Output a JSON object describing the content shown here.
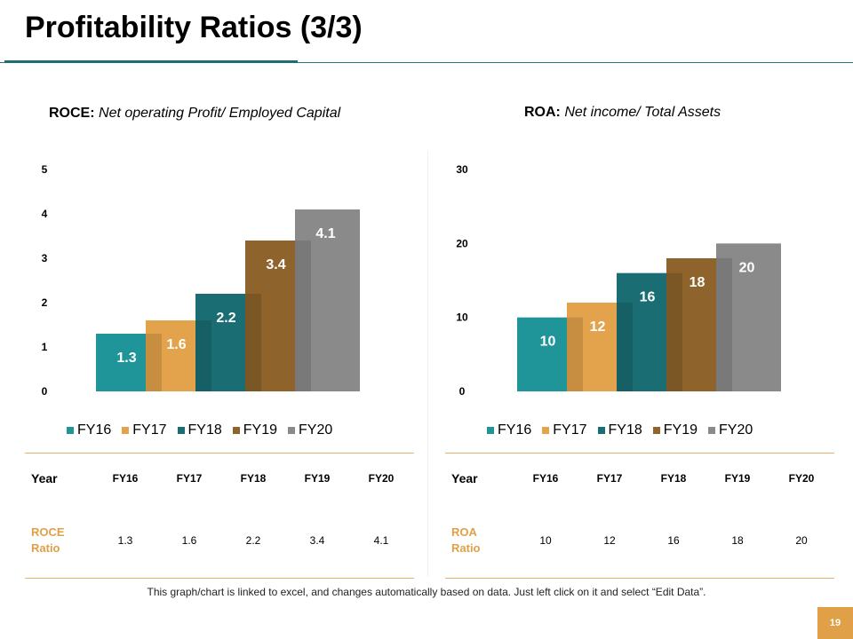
{
  "header": {
    "title": "Profitability Ratios (3/3)"
  },
  "colors": {
    "FY16": "#1f9499",
    "FY17": "#e3a24c",
    "FY18": "#1a6e73",
    "FY19": "#8e642c",
    "FY20": "#8a8a8a"
  },
  "chart_data": [
    {
      "type": "bar",
      "title_bold": "ROCE:",
      "title_rest": " Net operating Profit/ Employed Capital",
      "categories": [
        "FY16",
        "FY17",
        "FY18",
        "FY19",
        "FY20"
      ],
      "values": [
        1.3,
        1.6,
        2.2,
        3.4,
        4.1
      ],
      "data_labels": [
        "1.3",
        "1.6",
        "2.2",
        "3.4",
        "4.1"
      ],
      "yticks": [
        "0",
        "1",
        "2",
        "3",
        "4",
        "5"
      ],
      "ylim": [
        0,
        5
      ],
      "legend": [
        "FY16",
        "FY17",
        "FY18",
        "FY19",
        "FY20"
      ],
      "xlabel": "",
      "ylabel": ""
    },
    {
      "type": "bar",
      "title_bold": "ROA:",
      "title_rest": " Net income/ Total Assets",
      "categories": [
        "FY16",
        "FY17",
        "FY18",
        "FY19",
        "FY20"
      ],
      "values": [
        10,
        12,
        16,
        18,
        20
      ],
      "data_labels": [
        "10",
        "12",
        "16",
        "18",
        "20"
      ],
      "yticks": [
        "0",
        "10",
        "20",
        "30"
      ],
      "ylim": [
        0,
        30
      ],
      "legend": [
        "FY16",
        "FY17",
        "FY18",
        "FY19",
        "FY20"
      ],
      "xlabel": "",
      "ylabel": ""
    }
  ],
  "tables": [
    {
      "header": [
        "Year",
        "FY16",
        "FY17",
        "FY18",
        "FY19",
        "FY20"
      ],
      "row_label_1": "ROCE",
      "row_label_2": "Ratio",
      "values": [
        "1.3",
        "1.6",
        "2.2",
        "3.4",
        "4.1"
      ]
    },
    {
      "header": [
        "Year",
        "FY16",
        "FY17",
        "FY18",
        "FY19",
        "FY20"
      ],
      "row_label_1": "ROA",
      "row_label_2": "Ratio",
      "values": [
        "10",
        "12",
        "16",
        "18",
        "20"
      ]
    }
  ],
  "footnote": "This graph/chart is linked to excel, and changes automatically based on data. Just left click on it and select “Edit Data”.",
  "page_number": "19"
}
